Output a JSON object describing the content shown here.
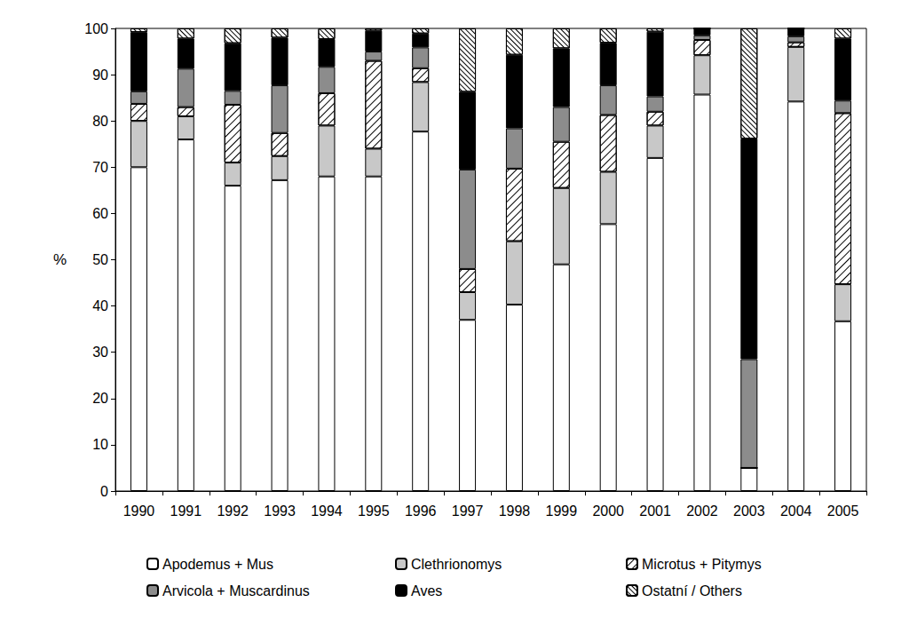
{
  "chart_data": {
    "type": "bar",
    "stacked": true,
    "grid": false,
    "y_label": "%",
    "categories": [
      "1990",
      "1991",
      "1992",
      "1993",
      "1994",
      "1995",
      "1996",
      "1997",
      "1998",
      "1999",
      "2000",
      "2001",
      "2002",
      "2003",
      "2004",
      "2005"
    ],
    "ylim": [
      0,
      100
    ],
    "yticks": [
      0,
      10,
      20,
      30,
      40,
      50,
      60,
      70,
      80,
      90,
      100
    ],
    "series": [
      {
        "name": "Apodemus + Mus",
        "color": "#ffffff",
        "values": [
          70,
          76,
          66,
          67.2,
          68,
          68,
          77.7,
          37,
          40.3,
          49,
          57.7,
          72,
          85.7,
          5,
          84.2,
          36.7
        ]
      },
      {
        "name": "Clethrionomys",
        "color": "#c8c8c8",
        "values": [
          10,
          5,
          5,
          5.2,
          11,
          6,
          10.7,
          6,
          13.7,
          16.5,
          11.3,
          7,
          8.5,
          0,
          11.8,
          8
        ]
      },
      {
        "name": "Microtus + Pitymys",
        "color": "#ffffff",
        "values": [
          3.7,
          2,
          12.5,
          5,
          7,
          19,
          3,
          5,
          15.7,
          10,
          12.3,
          3,
          3.3,
          0,
          1,
          37
        ]
      },
      {
        "name": "Arvicola + Muscardinus",
        "color": "#8c8c8c",
        "values": [
          2.7,
          8.3,
          3,
          10.3,
          5.7,
          2,
          4.5,
          21.5,
          8.7,
          7.5,
          6.4,
          3.3,
          1,
          23.5,
          1.3,
          2.7
        ]
      },
      {
        "name": "Aves",
        "color": "#000000",
        "values": [
          12.8,
          6.5,
          10.3,
          10.3,
          6,
          4.5,
          3,
          16.8,
          15.9,
          12.7,
          9.2,
          14,
          1.5,
          47.7,
          1.7,
          13.4
        ]
      },
      {
        "name": "Ostatní / Others",
        "color": "#ffffff",
        "values": [
          0.8,
          2.2,
          3.2,
          2,
          2.3,
          0.5,
          1.1,
          13.7,
          5.7,
          4.3,
          3.1,
          0.7,
          0,
          23.8,
          0,
          2.2
        ]
      }
    ]
  }
}
